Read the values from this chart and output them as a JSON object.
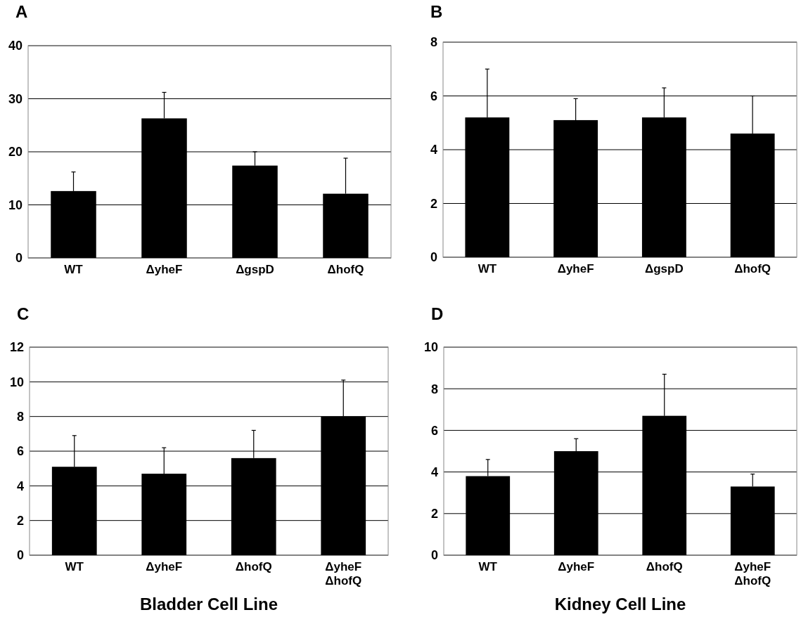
{
  "chart_data": [
    {
      "type": "bar",
      "title": "A",
      "categories": [
        "WT",
        "ΔyheF",
        "ΔgspD",
        "ΔhofQ"
      ],
      "values": [
        12.6,
        26.3,
        17.4,
        12.1
      ],
      "errors": [
        [
          12.6,
          16.2
        ],
        [
          26.3,
          31.2
        ],
        [
          17.4,
          20.0
        ],
        [
          12.1,
          18.8
        ]
      ],
      "color": "#000000",
      "ylim": [
        0,
        40
      ],
      "yticks": [
        0,
        10,
        20,
        30,
        40
      ],
      "grid": "y"
    },
    {
      "type": "bar",
      "title": "B",
      "categories": [
        "WT",
        "ΔyheF",
        "ΔgspD",
        "ΔhofQ"
      ],
      "values": [
        5.2,
        5.1,
        5.2,
        4.6
      ],
      "errors": [
        [
          5.2,
          7.0
        ],
        [
          5.1,
          5.9
        ],
        [
          5.2,
          6.3
        ],
        [
          4.6,
          6.0
        ]
      ],
      "color": "#000000",
      "ylim": [
        0,
        8
      ],
      "yticks": [
        0,
        2,
        4,
        6,
        8
      ],
      "grid": "y"
    },
    {
      "type": "bar",
      "title": "C",
      "xlabel": "Bladder Cell Line",
      "categories": [
        "WT",
        "ΔyheF",
        "ΔhofQ",
        "ΔyheF\nΔhofQ"
      ],
      "values": [
        5.1,
        4.7,
        5.6,
        8.0
      ],
      "errors": [
        [
          5.1,
          6.9
        ],
        [
          4.7,
          6.2
        ],
        [
          5.6,
          7.2
        ],
        [
          8.0,
          10.1
        ]
      ],
      "color": "#000000",
      "ylim": [
        0,
        12
      ],
      "yticks": [
        0,
        2,
        4,
        6,
        8,
        10,
        12
      ],
      "grid": "y"
    },
    {
      "type": "bar",
      "title": "D",
      "xlabel": "Kidney Cell Line",
      "categories": [
        "WT",
        "ΔyheF",
        "ΔhofQ",
        "ΔyheF\nΔhofQ"
      ],
      "values": [
        3.8,
        5.0,
        6.7,
        3.3
      ],
      "errors": [
        [
          3.8,
          4.6
        ],
        [
          5.0,
          5.6
        ],
        [
          6.7,
          8.7
        ],
        [
          3.3,
          3.9
        ]
      ],
      "color": "#000000",
      "ylim": [
        0,
        10
      ],
      "yticks": [
        0,
        2,
        4,
        6,
        8,
        10
      ],
      "grid": "y"
    }
  ]
}
